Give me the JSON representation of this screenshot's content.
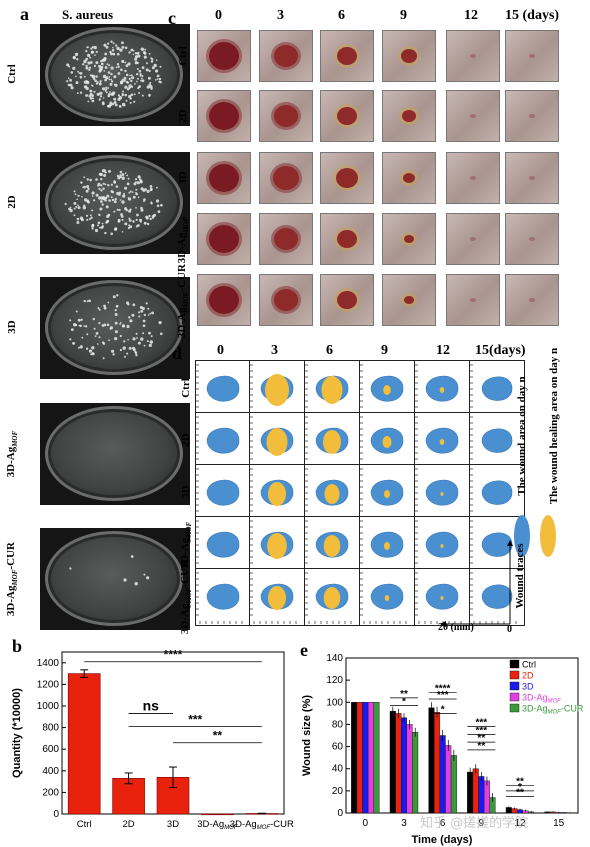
{
  "panel_a": {
    "label": "a",
    "title": "S. aureus",
    "rows": [
      "Ctrl",
      "2D",
      "3D",
      "3D-Ag",
      "3D-Ag -CUR"
    ],
    "sub": "MOF"
  },
  "panel_c": {
    "label": "c",
    "days": [
      "0",
      "3",
      "6",
      "9",
      "12",
      "15 (days)"
    ],
    "rows": [
      "Ctrl",
      "2D",
      "3D",
      "3D-Ag",
      "3D-Ag -CUR"
    ],
    "sub": "MOF"
  },
  "panel_d": {
    "label": "d",
    "days": [
      "0",
      "3",
      "6",
      "9",
      "12",
      "15(days)"
    ],
    "rows": [
      "Ctrl",
      "2D",
      "3D",
      "3D-Ag",
      "3D-Ag -CUR"
    ],
    "sub": "MOF",
    "legend_wound": "The wound area on day n",
    "legend_healing": "The wound healing area on day n",
    "legend_traces": "Wound traces",
    "scale_label": "20 (mm)",
    "scale_zero": "0",
    "colors": {
      "wound": "#4a8fd0",
      "healing": "#f2bd3a"
    }
  },
  "panel_b": {
    "label": "b",
    "chart_data": {
      "type": "bar",
      "categories": [
        "Ctrl",
        "2D",
        "3D",
        "3D-Ag",
        "3D-Ag -CUR"
      ],
      "category_sub": "MOF",
      "values": [
        1300,
        330,
        340,
        0,
        5
      ],
      "errors": [
        35,
        50,
        95,
        0,
        2
      ],
      "ylabel": "Quantity (*10000)",
      "yticks": [
        "0",
        "200",
        "400",
        "600",
        "800",
        "1000",
        "1200",
        "1400"
      ],
      "ylim": [
        0,
        1500
      ],
      "bar_color": "#e8220d",
      "significance": [
        "****",
        "ns",
        "***",
        "**"
      ]
    }
  },
  "panel_e": {
    "label": "e",
    "chart_data": {
      "type": "bar",
      "x": [
        "0",
        "3",
        "6",
        "9",
        "12",
        "15"
      ],
      "xlabel": "Time (days)",
      "ylabel": "Wound size (%)",
      "yticks": [
        "0",
        "20",
        "40",
        "60",
        "80",
        "100",
        "120",
        "140"
      ],
      "ylim": [
        0,
        140
      ],
      "series": [
        {
          "name": "Ctrl",
          "color": "#000000",
          "values": [
            100,
            92,
            95,
            37,
            5,
            1
          ]
        },
        {
          "name": "2D",
          "color": "#e8220d",
          "values": [
            100,
            90,
            91,
            40,
            4,
            1
          ]
        },
        {
          "name": "3D",
          "color": "#1a1aee",
          "values": [
            100,
            86,
            70,
            33,
            3,
            0.5
          ]
        },
        {
          "name": "3D-Ag",
          "sub": "MOF",
          "color": "#e040e0",
          "values": [
            100,
            80,
            61,
            29,
            2,
            0.5
          ]
        },
        {
          "name": "3D-Ag -CUR",
          "sub": "MOF",
          "color": "#3a9a3a",
          "values": [
            100,
            73,
            52,
            14,
            1,
            0.3
          ]
        }
      ],
      "errors": [
        0,
        4,
        5,
        4,
        1,
        0.5
      ],
      "significance": {
        "day3": [
          "**",
          "*"
        ],
        "day6": [
          "****",
          "***",
          "*"
        ],
        "day9": [
          "***",
          "***",
          "**",
          "**"
        ],
        "day12": [
          "**",
          "*",
          "**"
        ]
      }
    }
  },
  "watermark": "知乎 @搓搓的学院"
}
